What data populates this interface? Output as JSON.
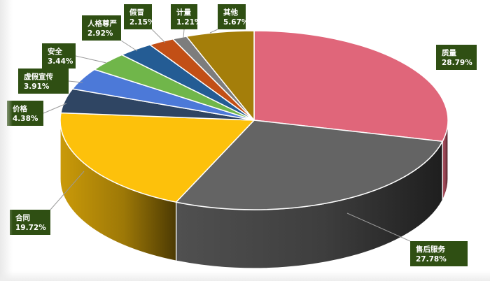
{
  "chart_data": {
    "type": "pie",
    "title": "",
    "slices": [
      {
        "label": "质量",
        "value": 28.79,
        "display": "28.79%",
        "color": "#E0667A"
      },
      {
        "label": "售后服务",
        "value": 27.78,
        "display": "27.78%",
        "color": "#646464"
      },
      {
        "label": "合同",
        "value": 19.72,
        "display": "19.72%",
        "color": "#FDC10B"
      },
      {
        "label": "价格",
        "value": 4.38,
        "display": "4.38%",
        "color": "#2F4563"
      },
      {
        "label": "虚假宣传",
        "value": 3.91,
        "display": "3.91%",
        "color": "#4C79D8"
      },
      {
        "label": "安全",
        "value": 3.44,
        "display": "3.44%",
        "color": "#70B64A"
      },
      {
        "label": "人格尊严",
        "value": 2.92,
        "display": "2.92%",
        "color": "#245C94"
      },
      {
        "label": "假冒",
        "value": 2.15,
        "display": "2.15%",
        "color": "#C24F16"
      },
      {
        "label": "计量",
        "value": 1.21,
        "display": "1.21%",
        "color": "#7D7D7D"
      },
      {
        "label": "其他",
        "value": 5.67,
        "display": "5.67%",
        "color": "#A47E0A"
      }
    ],
    "label_style": {
      "box_color": "#2F4F13",
      "text_color": "#FFFFFF"
    },
    "legend": "none",
    "style": "3d"
  }
}
